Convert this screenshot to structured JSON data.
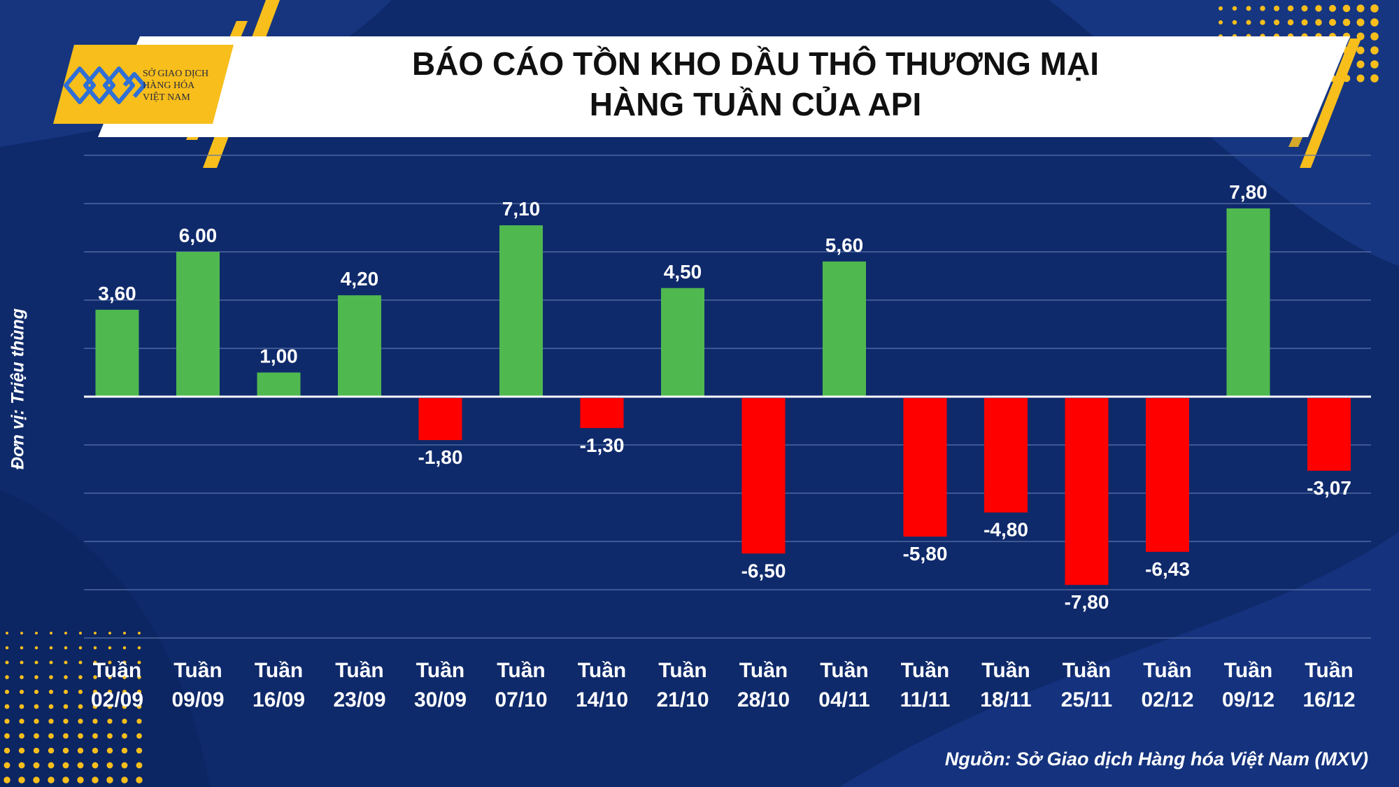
{
  "header": {
    "title_line1": "BÁO CÁO TỒN KHO DẦU THÔ THƯƠNG MẠI",
    "title_line2": "HÀNG TUẦN CỦA API"
  },
  "logo": {
    "line1": "SỞ GIAO DỊCH",
    "line2": "HÀNG HÓA",
    "line3": "VIỆT NAM"
  },
  "unit_label": "Đơn vị: Triệu thùng",
  "source": "Nguồn: Sở Giao dịch Hàng hóa Việt Nam (MXV)",
  "colors": {
    "background": "#0f2a6b",
    "positive": "#4fb84f",
    "negative": "#ff0000",
    "accent": "#f7be1c"
  },
  "chart_data": {
    "type": "bar",
    "categories": [
      [
        "Tuần",
        "02/09"
      ],
      [
        "Tuần",
        "09/09"
      ],
      [
        "Tuần",
        "16/09"
      ],
      [
        "Tuần",
        "23/09"
      ],
      [
        "Tuần",
        "30/09"
      ],
      [
        "Tuần",
        "07/10"
      ],
      [
        "Tuần",
        "14/10"
      ],
      [
        "Tuần",
        "21/10"
      ],
      [
        "Tuần",
        "28/10"
      ],
      [
        "Tuần",
        "04/11"
      ],
      [
        "Tuần",
        "11/11"
      ],
      [
        "Tuần",
        "18/11"
      ],
      [
        "Tuần",
        "25/11"
      ],
      [
        "Tuần",
        "02/12"
      ],
      [
        "Tuần",
        "09/12"
      ],
      [
        "Tuần",
        "16/12"
      ]
    ],
    "values": [
      3.6,
      6.0,
      1.0,
      4.2,
      -1.8,
      7.1,
      -1.3,
      4.5,
      -6.5,
      5.6,
      -5.8,
      -4.8,
      -7.8,
      -6.43,
      7.8,
      -3.07
    ],
    "labels": [
      "3,60",
      "6,00",
      "1,00",
      "4,20",
      "-1,80",
      "7,10",
      "-1,30",
      "4,50",
      "-6,50",
      "5,60",
      "-5,80",
      "-4,80",
      "-7,80",
      "-6,43",
      "7,80",
      "-3,07"
    ],
    "ylim": [
      -10,
      10
    ],
    "gridlines": true,
    "grid_step": 2
  }
}
